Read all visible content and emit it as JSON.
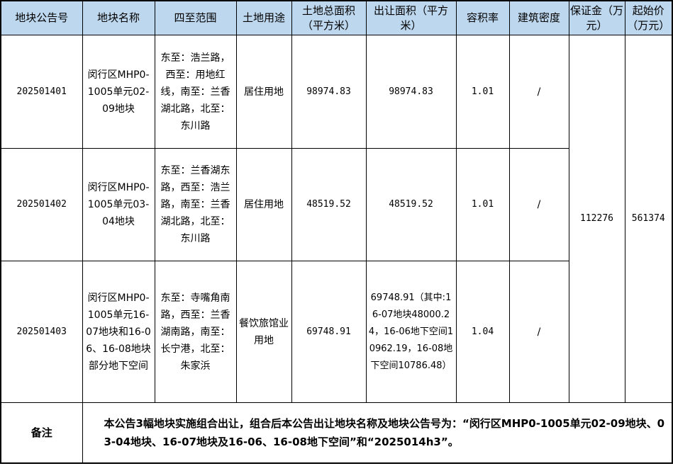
{
  "headers": [
    "地块公告号",
    "地块名称",
    "四至范围",
    "土地用途",
    "土地总面积（平方米）",
    "出让面积（平方米）",
    "容积率",
    "建筑密度",
    "保证金（万元）",
    "起始价（万元）"
  ],
  "rows": [
    {
      "id": "202501401",
      "name": "闵行区MHP0-1005单元02-09地块",
      "bounds": "东至：浩兰路，西至：用地红线，南至：兰香湖北路，北至：东川路",
      "use": "居住用地",
      "total_area": "98974.83",
      "sale_area": "98974.83",
      "far": "1.01",
      "density": "/"
    },
    {
      "id": "202501402",
      "name": "闵行区MHP0-1005单元03-04地块",
      "bounds": "东至：兰香湖东路，西至：浩兰路，南至：兰香湖北路，北至：东川路",
      "use": "居住用地",
      "total_area": "48519.52",
      "sale_area": "48519.52",
      "far": "1.01",
      "density": "/"
    },
    {
      "id": "202501403",
      "name": "闵行区MHP0-1005单元16-07地块和16-06、16-08地块部分地下空间",
      "bounds": "东至：寺嘴角南路，西至：兰香湖南路，南至：长宁港，北至：朱家浜",
      "use": "餐饮旅馆业用地",
      "total_area": "69748.91",
      "sale_area": "69748.91（其中:16-07地块48000.24，16-06地下空间10962.19，16-08地下空间10786.48）",
      "far": "1.04",
      "density": "/"
    }
  ],
  "deposit": "112276",
  "start_price": "561374",
  "remark_label": "备注",
  "remark": "本公告3幅地块实施组合出让，组合后本公告出让地块名称及地块公告号为：“闵行区MHP0-1005单元02-09地块、03-04地块、16-07地块及16-06、16-08地下空间”和“2025014h3”。",
  "colors": {
    "header_bg": "#bdd7ee",
    "border": "#000000"
  }
}
